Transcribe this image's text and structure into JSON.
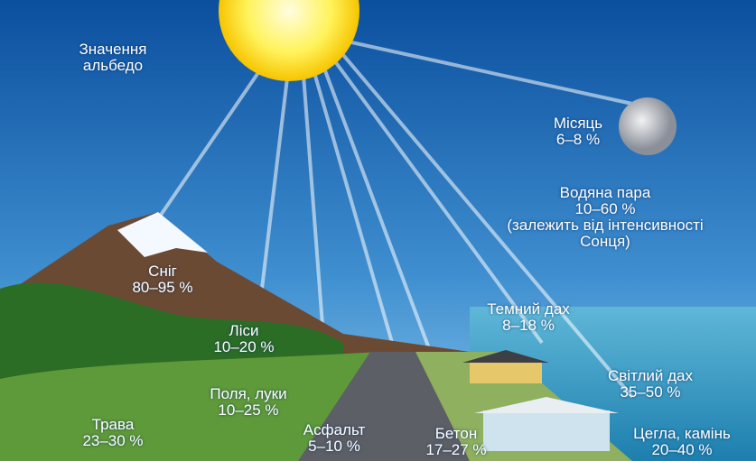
{
  "title": "Значення альбедо",
  "items": [
    {
      "name": "Місяць",
      "value": "6–8 %"
    },
    {
      "name": "Водяна пара",
      "value": "10–60 %",
      "note": "(залежить від інтенсивності Сонця)"
    },
    {
      "name": "Сніг",
      "value": "80–95 %"
    },
    {
      "name": "Ліси",
      "value": "10–20 %"
    },
    {
      "name": "Темний дах",
      "value": "8–18 %"
    },
    {
      "name": "Поля, луки",
      "value": "10–25 %"
    },
    {
      "name": "Світлий дах",
      "value": "35–50 %"
    },
    {
      "name": "Трава",
      "value": "23–30 %"
    },
    {
      "name": "Асфальт",
      "value": "5–10 %"
    },
    {
      "name": "Бетон",
      "value": "17–27 %"
    },
    {
      "name": "Цегла, камінь",
      "value": "20–40 %"
    }
  ]
}
